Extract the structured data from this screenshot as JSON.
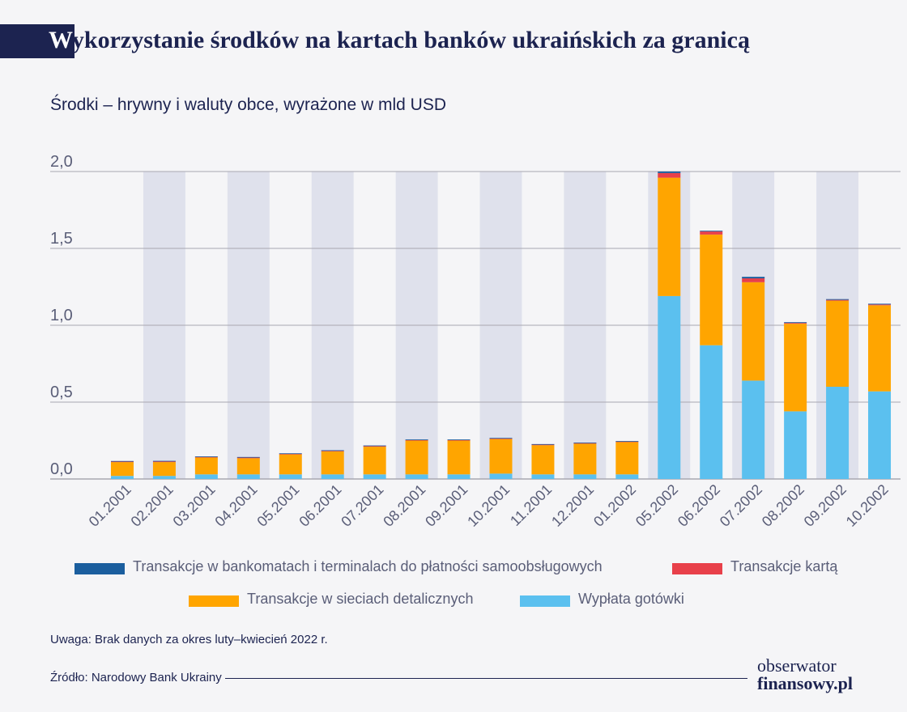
{
  "title": {
    "first_letter": "W",
    "rest": "ykorzystanie środków na kartach banków ukraińskich za granicą"
  },
  "subtitle": "Środki – hrywny i waluty obce, wyrażone w mld USD",
  "note": "Uwaga: Brak danych za okres luty–kwiecień 2022 r.",
  "source": "Źródło: Narodowy Bank Ukrainy",
  "brand": {
    "line1": "obserwator",
    "line2": "finansowy.pl"
  },
  "colors": {
    "atm": "#1b5e9e",
    "card": "#e8404a",
    "retail": "#ffa500",
    "cash": "#5bc0ef",
    "band": "#dfe1ec",
    "grid": "#a8a8b0",
    "text": "#1c2350"
  },
  "chart_data": {
    "type": "bar",
    "stacked": true,
    "ylim": [
      0,
      2.0
    ],
    "yticks": [
      "0,0",
      "0,5",
      "1,0",
      "1,5",
      "2,0"
    ],
    "yticks_values": [
      0,
      0.5,
      1.0,
      1.5,
      2.0
    ],
    "categories": [
      "01.2001",
      "02.2001",
      "03.2001",
      "04.2001",
      "05.2001",
      "06.2001",
      "07.2001",
      "08.2001",
      "09.2001",
      "10.2001",
      "11.2001",
      "12.2001",
      "01.2002",
      "05.2002",
      "06.2002",
      "07.2002",
      "08.2002",
      "09.2002",
      "10.2002"
    ],
    "series": [
      {
        "name": "Wypłata gotówki",
        "key": "cash",
        "values": [
          0.02,
          0.02,
          0.03,
          0.03,
          0.03,
          0.03,
          0.03,
          0.03,
          0.03,
          0.035,
          0.03,
          0.03,
          0.03,
          1.19,
          0.87,
          0.64,
          0.44,
          0.6,
          0.57
        ]
      },
      {
        "name": "Transakcje w sieciach detalicznych",
        "key": "retail",
        "values": [
          0.09,
          0.09,
          0.11,
          0.105,
          0.13,
          0.15,
          0.18,
          0.22,
          0.22,
          0.225,
          0.19,
          0.2,
          0.21,
          0.77,
          0.72,
          0.64,
          0.57,
          0.56,
          0.56
        ]
      },
      {
        "name": "Transakcje kartą",
        "key": "card",
        "values": [
          0.004,
          0.005,
          0.004,
          0.005,
          0.004,
          0.004,
          0.005,
          0.004,
          0.004,
          0.004,
          0.004,
          0.004,
          0.004,
          0.03,
          0.02,
          0.025,
          0.005,
          0.005,
          0.005
        ]
      },
      {
        "name": "Transakcje w bankomatach i terminalach do płatności samoobsługowych",
        "key": "atm",
        "values": [
          0.003,
          0.003,
          0.003,
          0.003,
          0.003,
          0.003,
          0.003,
          0.003,
          0.003,
          0.003,
          0.003,
          0.003,
          0.003,
          0.01,
          0.005,
          0.01,
          0.005,
          0.005,
          0.005
        ]
      }
    ]
  },
  "legend": [
    {
      "key": "atm",
      "label": "Transakcje w bankomatach i terminalach do płatności samoobsługowych"
    },
    {
      "key": "card",
      "label": "Transakcje kartą"
    },
    {
      "key": "retail",
      "label": "Transakcje w sieciach detalicznych"
    },
    {
      "key": "cash",
      "label": "Wypłata gotówki"
    }
  ]
}
